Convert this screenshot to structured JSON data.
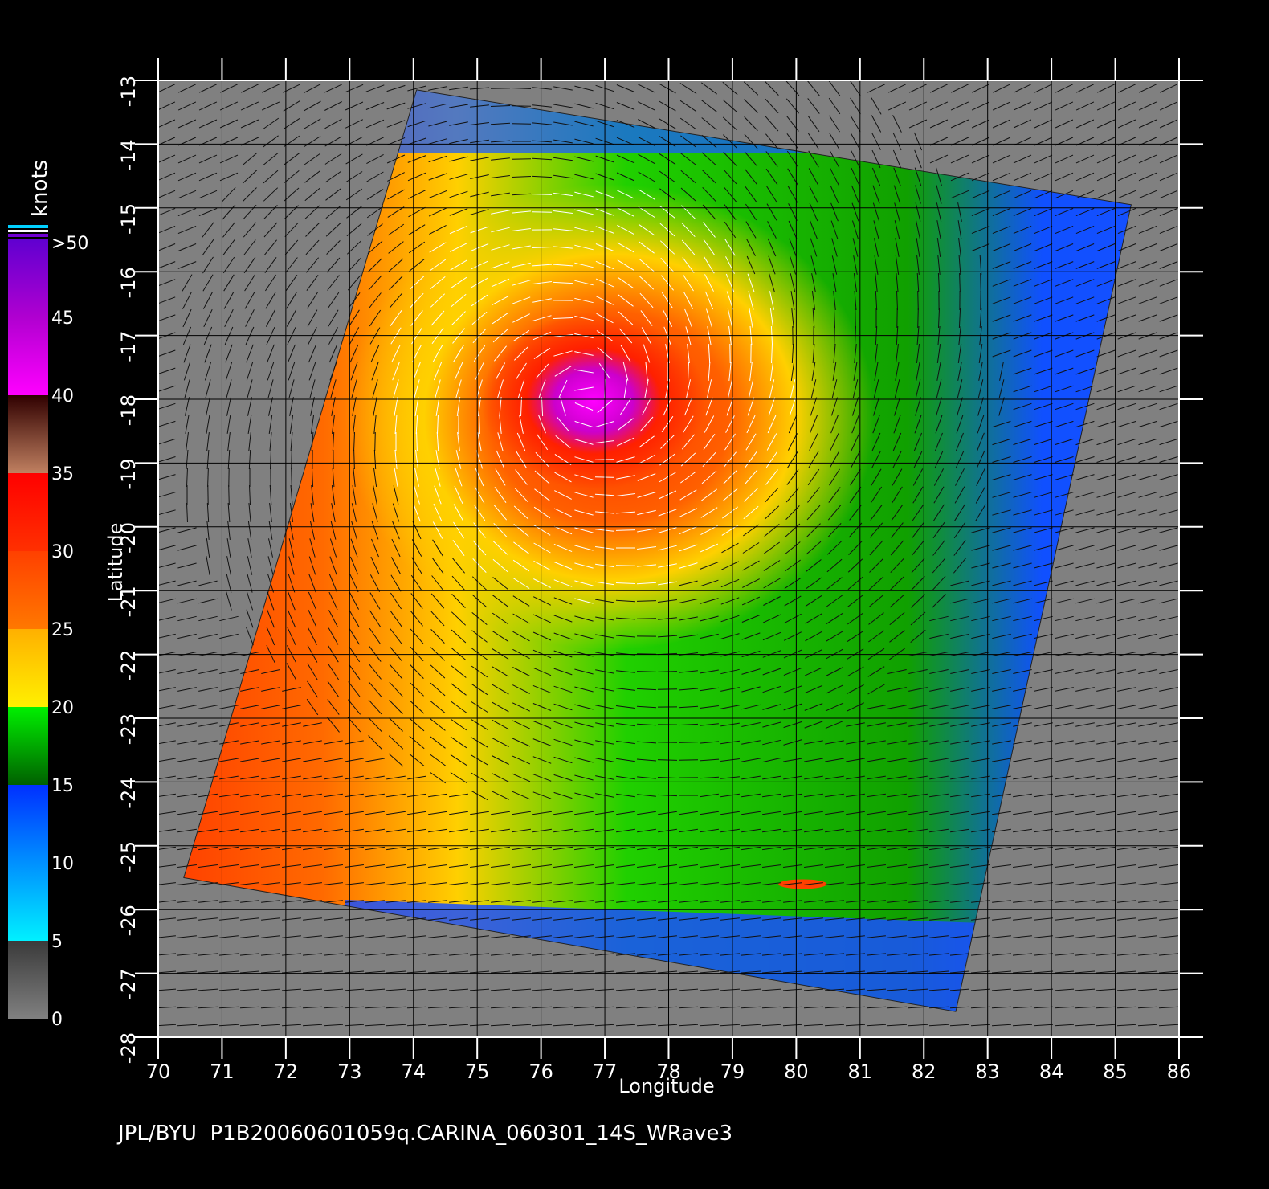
{
  "map": {
    "x_label": "Longitude",
    "y_label": "Latitude",
    "lon_ticks": [
      70,
      71,
      72,
      73,
      74,
      75,
      76,
      77,
      78,
      79,
      80,
      81,
      82,
      83,
      84,
      85,
      86
    ],
    "lat_ticks": [
      -13,
      -14,
      -15,
      -16,
      -17,
      -18,
      -19,
      -20,
      -21,
      -22,
      -23,
      -24,
      -25,
      -26,
      -27,
      -28
    ],
    "lon_range": [
      70,
      86
    ],
    "lat_range": [
      -28,
      -13
    ],
    "background_color": "#808080",
    "grid": true,
    "swath_corners_lonlat": [
      [
        74.05,
        -13.15
      ],
      [
        85.25,
        -14.95
      ],
      [
        82.5,
        -27.6
      ],
      [
        70.4,
        -25.5
      ]
    ],
    "storm_center_lonlat": [
      76.7,
      -17.9
    ]
  },
  "colorbar": {
    "units": "knots",
    "tick_labels": [
      ">50",
      "45",
      "40",
      "35",
      "30",
      "25",
      "20",
      "15",
      "10",
      "5",
      "0"
    ],
    "stops": [
      {
        "value": 0,
        "color": "#808080"
      },
      {
        "value": 5,
        "color": "#3a3a3a"
      },
      {
        "value": 5,
        "color": "#00f0ff"
      },
      {
        "value": 15,
        "color": "#0030ff"
      },
      {
        "value": 15,
        "color": "#006000"
      },
      {
        "value": 20,
        "color": "#00f000"
      },
      {
        "value": 20,
        "color": "#fff000"
      },
      {
        "value": 25,
        "color": "#ffb000"
      },
      {
        "value": 25,
        "color": "#ff7800"
      },
      {
        "value": 30,
        "color": "#ff4000"
      },
      {
        "value": 30,
        "color": "#ff3000"
      },
      {
        "value": 35,
        "color": "#ff0000"
      },
      {
        "value": 35,
        "color": "#c08060"
      },
      {
        "value": 40,
        "color": "#300000"
      },
      {
        "value": 40,
        "color": "#ff00ff"
      },
      {
        "value": 45,
        "color": "#b000d0"
      },
      {
        "value": 50,
        "color": "#6000d0"
      }
    ]
  },
  "footer": "JPL/BYU  P1B20060601059q.CARINA_060301_14S_WRave3"
}
